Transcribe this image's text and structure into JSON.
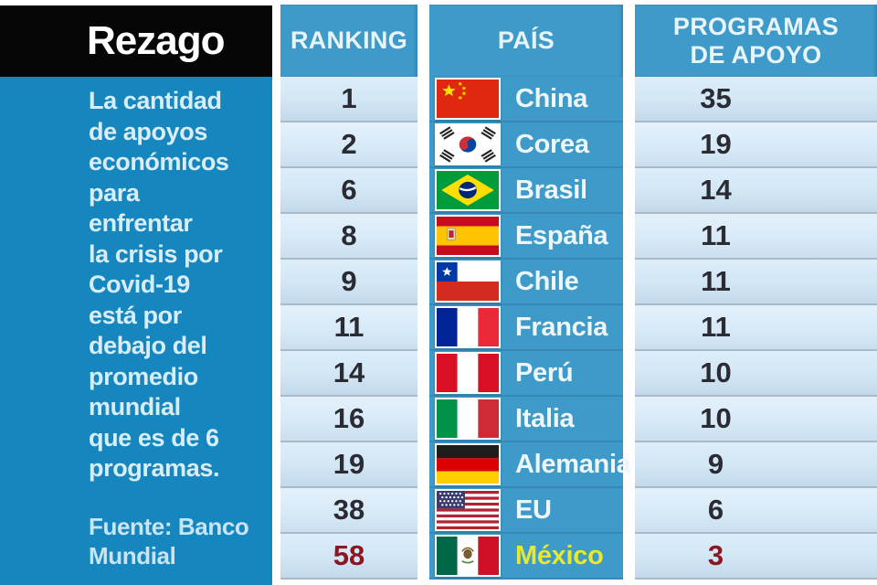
{
  "title": "Rezago",
  "sidebar": {
    "description": "La cantidad\nde apoyos\neconómicos\npara\nenfrentar\nla crisis por\nCovid-19\nestá por\ndebajo del\npromedio\nmundial\nque es de 6\nprogramas.",
    "source": "Fuente: Banco\nMundial"
  },
  "table": {
    "columns": [
      {
        "key": "ranking",
        "label": "RANKING"
      },
      {
        "key": "country",
        "label": "PAÍS"
      },
      {
        "key": "programs",
        "label": "PROGRAMAS\nDE APOYO"
      }
    ],
    "rows": [
      {
        "ranking": "1",
        "country": "China",
        "flag": "china-flag-icon",
        "programs": "35",
        "highlight": false
      },
      {
        "ranking": "2",
        "country": "Corea",
        "flag": "south-korea-flag-icon",
        "programs": "19",
        "highlight": false
      },
      {
        "ranking": "6",
        "country": "Brasil",
        "flag": "brazil-flag-icon",
        "programs": "14",
        "highlight": false
      },
      {
        "ranking": "8",
        "country": "España",
        "flag": "spain-flag-icon",
        "programs": "11",
        "highlight": false
      },
      {
        "ranking": "9",
        "country": "Chile",
        "flag": "chile-flag-icon",
        "programs": "11",
        "highlight": false
      },
      {
        "ranking": "11",
        "country": "Francia",
        "flag": "france-flag-icon",
        "programs": "11",
        "highlight": false
      },
      {
        "ranking": "14",
        "country": "Perú",
        "flag": "peru-flag-icon",
        "programs": "10",
        "highlight": false
      },
      {
        "ranking": "16",
        "country": "Italia",
        "flag": "italy-flag-icon",
        "programs": "10",
        "highlight": false
      },
      {
        "ranking": "19",
        "country": "Alemania",
        "flag": "germany-flag-icon",
        "programs": "9",
        "highlight": false
      },
      {
        "ranking": "38",
        "country": "EU",
        "flag": "usa-flag-icon",
        "programs": "6",
        "highlight": false
      },
      {
        "ranking": "58",
        "country": "México",
        "flag": "mexico-flag-icon",
        "programs": "3",
        "highlight": true
      }
    ]
  },
  "colors": {
    "sidebar_blue": "#1587be",
    "column_blue": "#3e9ac8",
    "title_box_black": "#060606",
    "row_light_blue": "#d2e6f4",
    "highlight_yellow": "#e6e832",
    "highlight_maroon": "#8c1622"
  },
  "chart_data": {
    "type": "table",
    "title": "Rezago",
    "subtitle": "La cantidad de apoyos económicos para enfrentar la crisis por Covid-19 está por debajo del promedio mundial que es de 6 programas.",
    "source": "Fuente: Banco Mundial",
    "columns": [
      "RANKING",
      "PAÍS",
      "PROGRAMAS DE APOYO"
    ],
    "rows": [
      [
        1,
        "China",
        35
      ],
      [
        2,
        "Corea",
        19
      ],
      [
        6,
        "Brasil",
        14
      ],
      [
        8,
        "España",
        11
      ],
      [
        9,
        "Chile",
        11
      ],
      [
        11,
        "Francia",
        11
      ],
      [
        14,
        "Perú",
        10
      ],
      [
        16,
        "Italia",
        10
      ],
      [
        19,
        "Alemania",
        9
      ],
      [
        38,
        "EU",
        6
      ],
      [
        58,
        "México",
        3
      ]
    ],
    "world_average_programs": 6,
    "highlighted_row": "México"
  }
}
